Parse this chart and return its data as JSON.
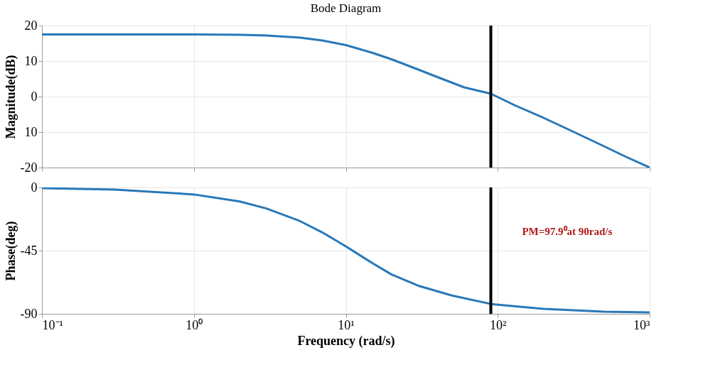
{
  "chart_data": [
    {
      "type": "line",
      "title": "Bode Diagram",
      "ylabel": "Magnitude(dB)",
      "log": "x",
      "grid": true,
      "tick_labels": "y",
      "x": [
        0.1,
        0.3,
        1,
        2,
        3,
        5,
        7,
        10,
        15,
        20,
        30,
        40,
        60,
        90,
        130,
        200,
        300,
        500,
        700,
        1000
      ],
      "series": [
        {
          "color": "#2878b8",
          "values": [
            17.5,
            17.5,
            17.5,
            17.4,
            17.2,
            16.6,
            15.8,
            14.5,
            12.3,
            10.5,
            7.6,
            5.5,
            2.6,
            0.8,
            -2.5,
            -6,
            -9.5,
            -14,
            -17,
            -20
          ]
        }
      ],
      "xlim": [
        0.1,
        1000
      ],
      "xticks": [
        0.1,
        1,
        10,
        100,
        1000
      ],
      "ylim": [
        -20,
        20
      ],
      "yticks": [
        20,
        10,
        0,
        {
          "value": -10,
          "label": "10"
        },
        -20
      ],
      "ref_lines": [
        {
          "axis": "x",
          "value": 90,
          "color": "#000000"
        }
      ]
    },
    {
      "type": "line",
      "xlabel": "Frequency (rad/s)",
      "ylabel": "Phase(deg)",
      "log": "x",
      "grid": true,
      "x": [
        0.1,
        0.3,
        1,
        2,
        3,
        5,
        7,
        10,
        15,
        20,
        30,
        50,
        90,
        200,
        500,
        1000
      ],
      "series": [
        {
          "color": "#2878b8",
          "values": [
            -0.5,
            -1.5,
            -5,
            -10,
            -15,
            -24,
            -32,
            -42,
            -54,
            -62,
            -70,
            -77,
            -83,
            -86.5,
            -88.5,
            -89
          ]
        }
      ],
      "xlim": [
        0.1,
        1000
      ],
      "xticks": [
        {
          "value": 0.1,
          "label": "10⁻¹"
        },
        {
          "value": 1,
          "label": "10⁰"
        },
        {
          "value": 10,
          "label": "10¹"
        },
        {
          "value": 100,
          "label": "10²"
        },
        {
          "value": 1000,
          "label": "10³"
        }
      ],
      "ylim": [
        -90,
        0
      ],
      "yticks": [
        0,
        -45,
        -90
      ],
      "ref_lines": [
        {
          "axis": "x",
          "value": 90,
          "color": "#000000"
        }
      ],
      "annotations": [
        "PM=97.9⁰at 90rad/s"
      ]
    }
  ]
}
